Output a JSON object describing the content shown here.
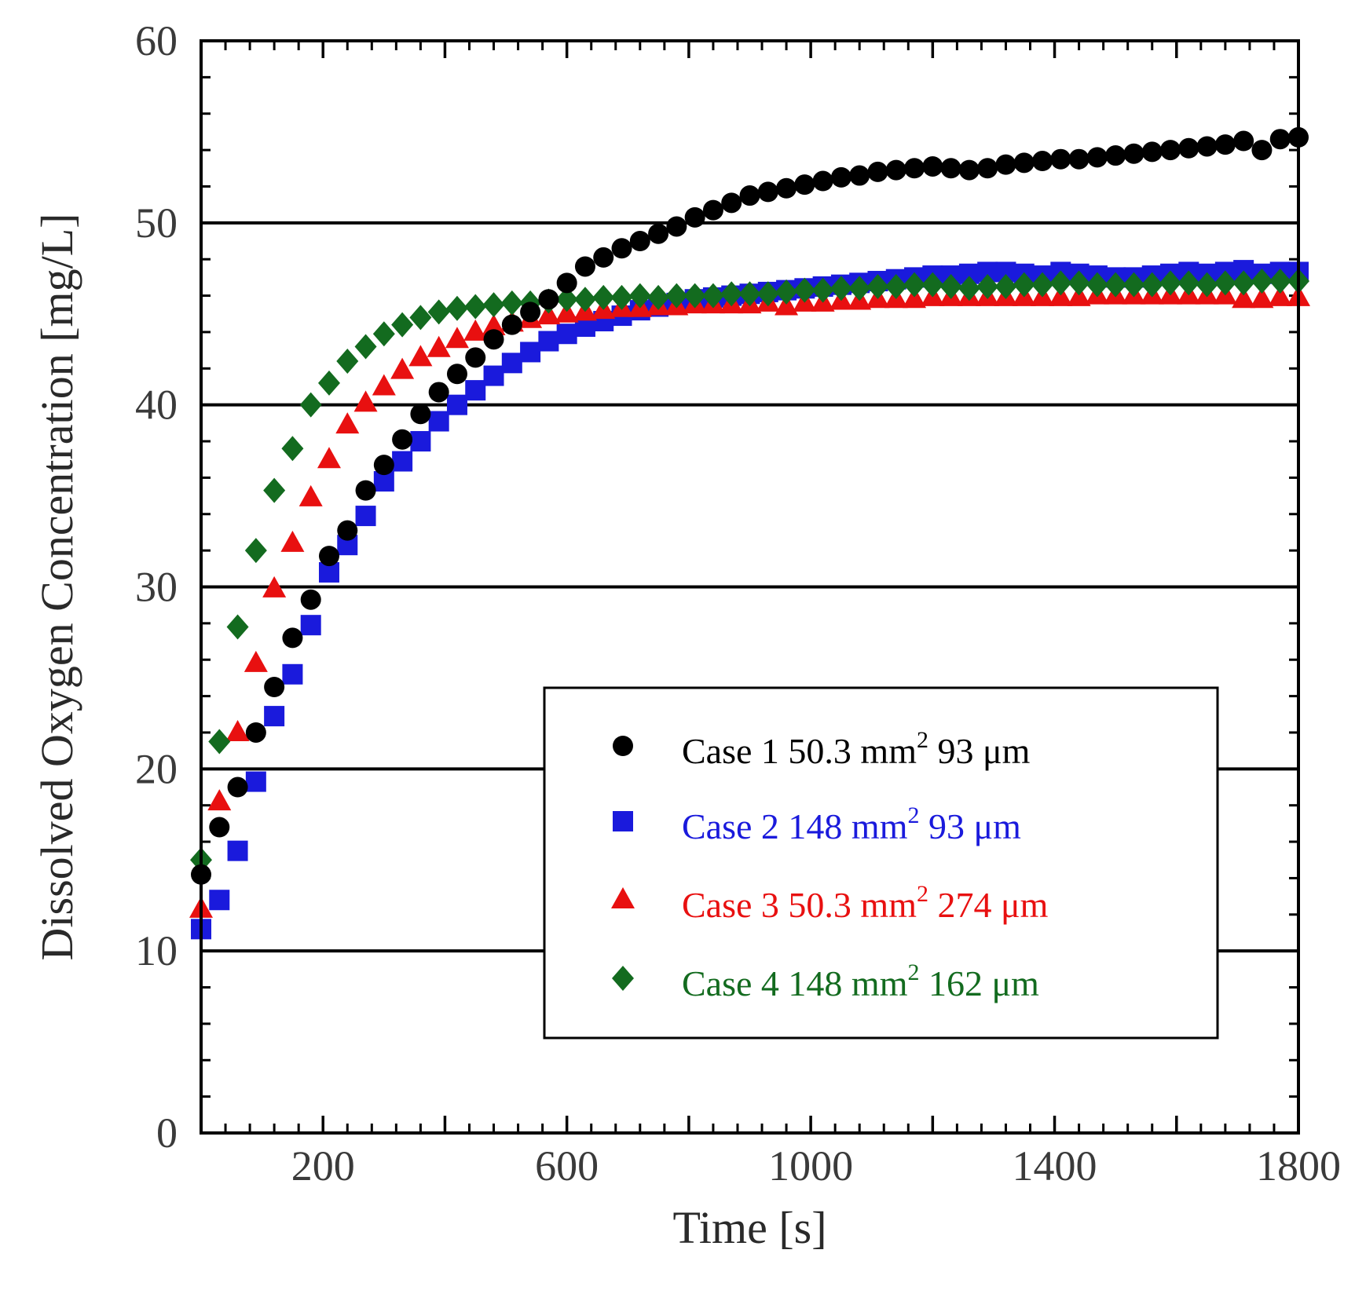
{
  "chart_data": {
    "type": "scatter",
    "xlabel": "Time [s]",
    "ylabel": "Dissolved Oxygen Concentration [mg/L]",
    "xlim": [
      0,
      1800
    ],
    "ylim": [
      0,
      60
    ],
    "xticks": [
      200,
      600,
      1000,
      1400,
      1800
    ],
    "yticks": [
      0,
      10,
      20,
      30,
      40,
      50,
      60
    ],
    "x_minor_step": 40,
    "y_minor_step": 2,
    "grid": "horizontal major",
    "legend_position": "bottom-right",
    "series": [
      {
        "name": "Case 1",
        "area": "50.3 mm",
        "area_exp": "2",
        "thickness": "93 μm",
        "marker": "circle",
        "color": "#000000",
        "points": [
          [
            0,
            14.2
          ],
          [
            30,
            16.8
          ],
          [
            60,
            19.0
          ],
          [
            90,
            22.0
          ],
          [
            120,
            24.5
          ],
          [
            150,
            27.2
          ],
          [
            180,
            29.3
          ],
          [
            210,
            31.7
          ],
          [
            240,
            33.1
          ],
          [
            270,
            35.3
          ],
          [
            300,
            36.7
          ],
          [
            330,
            38.1
          ],
          [
            360,
            39.5
          ],
          [
            390,
            40.7
          ],
          [
            420,
            41.7
          ],
          [
            450,
            42.6
          ],
          [
            480,
            43.6
          ],
          [
            510,
            44.4
          ],
          [
            540,
            45.1
          ],
          [
            570,
            45.8
          ],
          [
            600,
            46.7
          ],
          [
            630,
            47.6
          ],
          [
            660,
            48.1
          ],
          [
            690,
            48.6
          ],
          [
            720,
            49.0
          ],
          [
            750,
            49.4
          ],
          [
            780,
            49.8
          ],
          [
            810,
            50.3
          ],
          [
            840,
            50.7
          ],
          [
            870,
            51.1
          ],
          [
            900,
            51.5
          ],
          [
            930,
            51.7
          ],
          [
            960,
            51.9
          ],
          [
            990,
            52.1
          ],
          [
            1020,
            52.3
          ],
          [
            1050,
            52.5
          ],
          [
            1080,
            52.6
          ],
          [
            1110,
            52.8
          ],
          [
            1140,
            52.9
          ],
          [
            1170,
            53.0
          ],
          [
            1200,
            53.1
          ],
          [
            1230,
            53.0
          ],
          [
            1260,
            52.9
          ],
          [
            1290,
            53.0
          ],
          [
            1320,
            53.2
          ],
          [
            1350,
            53.3
          ],
          [
            1380,
            53.4
          ],
          [
            1410,
            53.5
          ],
          [
            1440,
            53.5
          ],
          [
            1470,
            53.6
          ],
          [
            1500,
            53.7
          ],
          [
            1530,
            53.8
          ],
          [
            1560,
            53.9
          ],
          [
            1590,
            54.0
          ],
          [
            1620,
            54.1
          ],
          [
            1650,
            54.2
          ],
          [
            1680,
            54.3
          ],
          [
            1710,
            54.5
          ],
          [
            1740,
            54.0
          ],
          [
            1770,
            54.6
          ],
          [
            1800,
            54.7
          ]
        ]
      },
      {
        "name": "Case 2",
        "area": "148  mm",
        "area_exp": "2",
        "thickness": "93 μm",
        "marker": "square",
        "color": "#1a1adc",
        "points": [
          [
            0,
            11.2
          ],
          [
            30,
            12.8
          ],
          [
            60,
            15.5
          ],
          [
            90,
            19.3
          ],
          [
            120,
            22.9
          ],
          [
            150,
            25.2
          ],
          [
            180,
            27.9
          ],
          [
            210,
            30.8
          ],
          [
            240,
            32.3
          ],
          [
            270,
            33.9
          ],
          [
            300,
            35.8
          ],
          [
            330,
            36.9
          ],
          [
            360,
            38.0
          ],
          [
            390,
            39.1
          ],
          [
            420,
            40.0
          ],
          [
            450,
            40.8
          ],
          [
            480,
            41.6
          ],
          [
            510,
            42.3
          ],
          [
            540,
            42.9
          ],
          [
            570,
            43.5
          ],
          [
            600,
            43.9
          ],
          [
            630,
            44.3
          ],
          [
            660,
            44.6
          ],
          [
            690,
            44.9
          ],
          [
            720,
            45.2
          ],
          [
            750,
            45.4
          ],
          [
            780,
            45.6
          ],
          [
            810,
            45.8
          ],
          [
            840,
            45.9
          ],
          [
            870,
            46.0
          ],
          [
            900,
            46.1
          ],
          [
            930,
            46.2
          ],
          [
            960,
            46.3
          ],
          [
            990,
            46.4
          ],
          [
            1020,
            46.5
          ],
          [
            1050,
            46.6
          ],
          [
            1080,
            46.7
          ],
          [
            1110,
            46.8
          ],
          [
            1140,
            46.9
          ],
          [
            1170,
            47.0
          ],
          [
            1200,
            47.1
          ],
          [
            1230,
            47.1
          ],
          [
            1260,
            47.2
          ],
          [
            1290,
            47.3
          ],
          [
            1320,
            47.3
          ],
          [
            1350,
            47.2
          ],
          [
            1380,
            47.1
          ],
          [
            1410,
            47.3
          ],
          [
            1440,
            47.2
          ],
          [
            1470,
            47.1
          ],
          [
            1500,
            47.0
          ],
          [
            1530,
            47.0
          ],
          [
            1560,
            47.1
          ],
          [
            1590,
            47.2
          ],
          [
            1620,
            47.3
          ],
          [
            1650,
            47.2
          ],
          [
            1680,
            47.3
          ],
          [
            1710,
            47.4
          ],
          [
            1740,
            47.2
          ],
          [
            1770,
            47.3
          ],
          [
            1800,
            47.3
          ]
        ]
      },
      {
        "name": "Case 3",
        "area": "50.3 mm",
        "area_exp": "2",
        "thickness": "274 μm",
        "marker": "triangle",
        "color": "#e81010",
        "points": [
          [
            0,
            12.3
          ],
          [
            30,
            18.2
          ],
          [
            60,
            22.0
          ],
          [
            90,
            25.8
          ],
          [
            120,
            29.9
          ],
          [
            150,
            32.4
          ],
          [
            180,
            34.9
          ],
          [
            210,
            37.0
          ],
          [
            240,
            38.9
          ],
          [
            270,
            40.1
          ],
          [
            300,
            41.0
          ],
          [
            330,
            41.9
          ],
          [
            360,
            42.6
          ],
          [
            390,
            43.1
          ],
          [
            420,
            43.6
          ],
          [
            450,
            44.0
          ],
          [
            480,
            44.3
          ],
          [
            510,
            44.5
          ],
          [
            540,
            44.7
          ],
          [
            570,
            44.9
          ],
          [
            600,
            45.0
          ],
          [
            630,
            45.1
          ],
          [
            660,
            45.2
          ],
          [
            690,
            45.3
          ],
          [
            720,
            45.3
          ],
          [
            750,
            45.4
          ],
          [
            780,
            45.4
          ],
          [
            810,
            45.5
          ],
          [
            840,
            45.5
          ],
          [
            870,
            45.5
          ],
          [
            900,
            45.5
          ],
          [
            930,
            45.6
          ],
          [
            960,
            45.4
          ],
          [
            990,
            45.6
          ],
          [
            1020,
            45.6
          ],
          [
            1050,
            45.7
          ],
          [
            1080,
            45.7
          ],
          [
            1110,
            45.8
          ],
          [
            1140,
            45.8
          ],
          [
            1170,
            45.8
          ],
          [
            1200,
            45.9
          ],
          [
            1230,
            45.9
          ],
          [
            1260,
            45.9
          ],
          [
            1290,
            45.9
          ],
          [
            1320,
            45.9
          ],
          [
            1350,
            45.9
          ],
          [
            1380,
            45.9
          ],
          [
            1410,
            45.9
          ],
          [
            1440,
            45.9
          ],
          [
            1470,
            46.0
          ],
          [
            1500,
            46.0
          ],
          [
            1530,
            46.0
          ],
          [
            1560,
            46.0
          ],
          [
            1590,
            46.0
          ],
          [
            1620,
            46.0
          ],
          [
            1650,
            46.0
          ],
          [
            1680,
            46.0
          ],
          [
            1710,
            45.8
          ],
          [
            1740,
            45.8
          ],
          [
            1770,
            45.9
          ],
          [
            1800,
            45.9
          ]
        ]
      },
      {
        "name": "Case 4",
        "area": "148  mm",
        "area_exp": "2",
        "thickness": "162 μm",
        "marker": "diamond",
        "color": "#136b1f",
        "points": [
          [
            0,
            15.0
          ],
          [
            30,
            21.5
          ],
          [
            60,
            27.8
          ],
          [
            90,
            32.0
          ],
          [
            120,
            35.3
          ],
          [
            150,
            37.6
          ],
          [
            180,
            40.0
          ],
          [
            210,
            41.2
          ],
          [
            240,
            42.4
          ],
          [
            270,
            43.2
          ],
          [
            300,
            43.9
          ],
          [
            330,
            44.4
          ],
          [
            360,
            44.8
          ],
          [
            390,
            45.1
          ],
          [
            420,
            45.3
          ],
          [
            450,
            45.4
          ],
          [
            480,
            45.5
          ],
          [
            510,
            45.6
          ],
          [
            540,
            45.6
          ],
          [
            570,
            45.7
          ],
          [
            600,
            45.8
          ],
          [
            630,
            45.8
          ],
          [
            660,
            45.9
          ],
          [
            690,
            45.9
          ],
          [
            720,
            46.0
          ],
          [
            750,
            45.9
          ],
          [
            780,
            46.0
          ],
          [
            810,
            46.0
          ],
          [
            840,
            46.0
          ],
          [
            870,
            46.1
          ],
          [
            900,
            46.1
          ],
          [
            930,
            46.1
          ],
          [
            960,
            46.2
          ],
          [
            990,
            46.3
          ],
          [
            1020,
            46.3
          ],
          [
            1050,
            46.4
          ],
          [
            1080,
            46.4
          ],
          [
            1110,
            46.5
          ],
          [
            1140,
            46.5
          ],
          [
            1170,
            46.6
          ],
          [
            1200,
            46.6
          ],
          [
            1230,
            46.5
          ],
          [
            1260,
            46.4
          ],
          [
            1290,
            46.5
          ],
          [
            1320,
            46.5
          ],
          [
            1350,
            46.6
          ],
          [
            1380,
            46.6
          ],
          [
            1410,
            46.7
          ],
          [
            1440,
            46.7
          ],
          [
            1470,
            46.6
          ],
          [
            1500,
            46.6
          ],
          [
            1530,
            46.6
          ],
          [
            1560,
            46.6
          ],
          [
            1590,
            46.7
          ],
          [
            1620,
            46.7
          ],
          [
            1650,
            46.6
          ],
          [
            1680,
            46.7
          ],
          [
            1710,
            46.7
          ],
          [
            1740,
            46.8
          ],
          [
            1770,
            46.8
          ],
          [
            1800,
            46.8
          ]
        ]
      }
    ]
  }
}
